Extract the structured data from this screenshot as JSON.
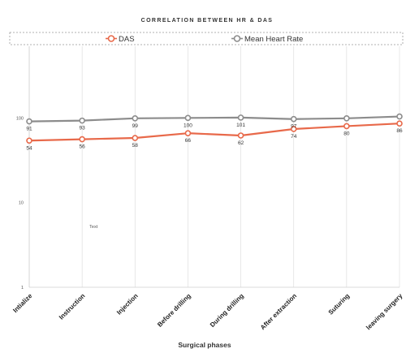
{
  "chart_data": {
    "type": "line",
    "title": "CORRELATION BETWEEN HR & DAS",
    "xlabel": "Surgical phases",
    "ylabel": "",
    "y_scale": "log",
    "ylim": [
      1,
      1000
    ],
    "y_ticks": [
      1,
      10,
      100
    ],
    "y_tick_labels": [
      "1",
      "10",
      "100"
    ],
    "grid": "vertical",
    "legend_position": "top",
    "categories": [
      "Intialize",
      "Instruction",
      "Injection",
      "Before drilling",
      "During drilling",
      "After extraction",
      "Suturing",
      "leaving surgery"
    ],
    "series": [
      {
        "name": "DAS",
        "color": "#e8694a",
        "values": [
          54,
          56,
          58,
          66,
          62,
          74,
          80,
          86
        ]
      },
      {
        "name": "Mean Heart Rate",
        "color": "#8c8c8c",
        "values": [
          91,
          93,
          99,
          100,
          101,
          97,
          99,
          104
        ]
      }
    ],
    "data_labels": [
      {
        "series": 0,
        "labels": [
          "54",
          "56",
          "58",
          "66",
          "62",
          "74",
          "80",
          "86"
        ]
      },
      {
        "series": 1,
        "labels": [
          "91",
          "93",
          "99",
          "100",
          "101",
          "97",
          "",
          ""
        ]
      }
    ],
    "annotations": [
      {
        "text": "Text",
        "x": "Instruction",
        "y": 5
      }
    ]
  }
}
